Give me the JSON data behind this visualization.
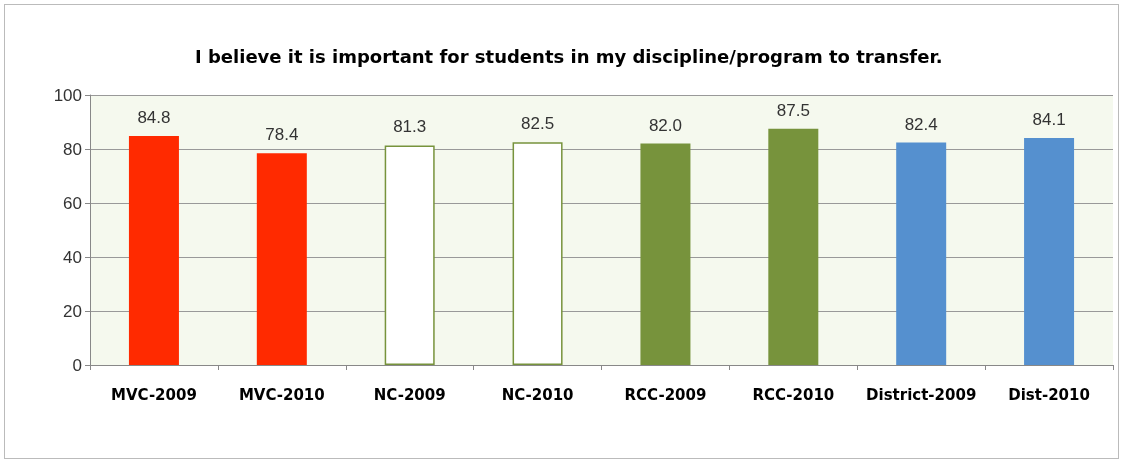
{
  "chart_data": {
    "type": "bar",
    "title": "I believe it is important for students in my discipline/program to transfer.",
    "categories": [
      "MVC-2009",
      "MVC-2010",
      "NC-2009",
      "NC-2010",
      "RCC-2009",
      "RCC-2010",
      "District-2009",
      "Dist-2010"
    ],
    "values": [
      84.8,
      78.4,
      81.3,
      82.5,
      82.0,
      87.5,
      82.4,
      84.1
    ],
    "colors": [
      "#ff2a00",
      "#ff2a00",
      "#ffffff",
      "#ffffff",
      "#77933c",
      "#77933c",
      "#5590cf",
      "#5590cf"
    ],
    "value_labels": [
      "84.8",
      "78.4",
      "81.3",
      "82.5",
      "82.0",
      "87.5",
      "82.4",
      "84.1"
    ],
    "ylim": [
      0,
      100
    ],
    "yticks": [
      0,
      20,
      40,
      60,
      80,
      100
    ],
    "grid": "y"
  }
}
